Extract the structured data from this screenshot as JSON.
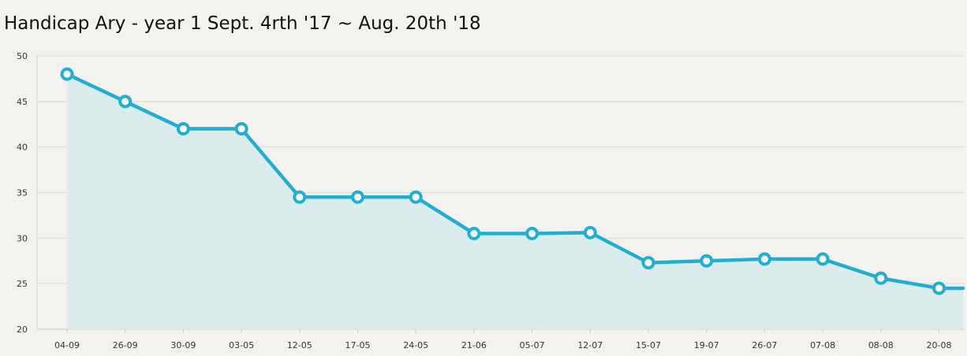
{
  "chart_data": {
    "type": "area",
    "title": "Handicap Ary - year 1 Sept. 4rth '17 ~ Aug. 20th '18",
    "xlabel": "",
    "ylabel": "",
    "categories": [
      "04-09",
      "26-09",
      "30-09",
      "03-05",
      "12-05",
      "17-05",
      "24-05",
      "21-06",
      "05-07",
      "12-07",
      "15-07",
      "19-07",
      "26-07",
      "07-08",
      "08-08",
      "20-08"
    ],
    "series": [
      {
        "values": [
          48,
          45,
          42,
          42,
          34.5,
          34.5,
          34.5,
          30.5,
          30.5,
          30.6,
          27.3,
          27.5,
          27.7,
          27.7,
          25.6,
          24.5
        ]
      }
    ],
    "ylim": [
      20,
      50
    ],
    "yticks": [
      "20",
      "25",
      "30",
      "35",
      "40",
      "45",
      "50"
    ],
    "grid": true,
    "legend": "none",
    "colors": {
      "line": "#22aed1",
      "area": "#dceced",
      "marker_fill": "#ffffff",
      "grid": "#d9d9d6",
      "background": "#f4f2ee"
    }
  }
}
